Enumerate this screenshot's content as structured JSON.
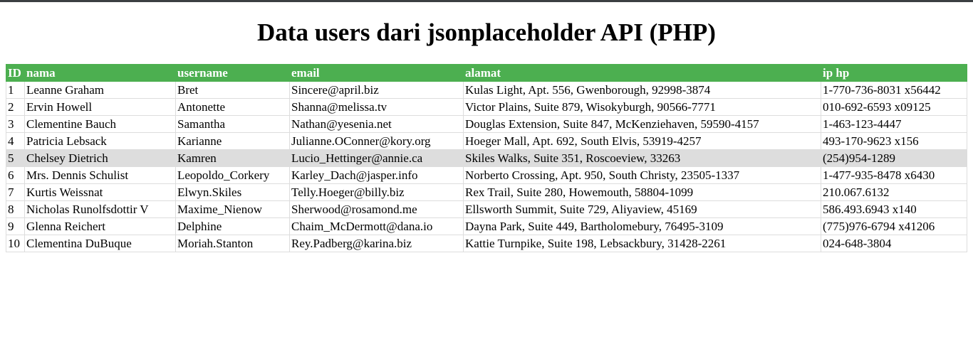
{
  "page_title": "Data users dari jsonplaceholder API (PHP)",
  "table": {
    "headers": [
      "ID",
      "nama",
      "username",
      "email",
      "alamat",
      "ip hp"
    ],
    "rows": [
      [
        "1",
        "Leanne Graham",
        "Bret",
        "Sincere@april.biz",
        "Kulas Light, Apt. 556, Gwenborough, 92998-3874",
        "1-770-736-8031 x56442"
      ],
      [
        "2",
        "Ervin Howell",
        "Antonette",
        "Shanna@melissa.tv",
        "Victor Plains, Suite 879, Wisokyburgh, 90566-7771",
        "010-692-6593 x09125"
      ],
      [
        "3",
        "Clementine Bauch",
        "Samantha",
        "Nathan@yesenia.net",
        "Douglas Extension, Suite 847, McKenziehaven, 59590-4157",
        "1-463-123-4447"
      ],
      [
        "4",
        "Patricia Lebsack",
        "Karianne",
        "Julianne.OConner@kory.org",
        "Hoeger Mall, Apt. 692, South Elvis, 53919-4257",
        "493-170-9623 x156"
      ],
      [
        "5",
        "Chelsey Dietrich",
        "Kamren",
        "Lucio_Hettinger@annie.ca",
        "Skiles Walks, Suite 351, Roscoeview, 33263",
        "(254)954-1289"
      ],
      [
        "6",
        "Mrs. Dennis Schulist",
        "Leopoldo_Corkery",
        "Karley_Dach@jasper.info",
        "Norberto Crossing, Apt. 950, South Christy, 23505-1337",
        "1-477-935-8478 x6430"
      ],
      [
        "7",
        "Kurtis Weissnat",
        "Elwyn.Skiles",
        "Telly.Hoeger@billy.biz",
        "Rex Trail, Suite 280, Howemouth, 58804-1099",
        "210.067.6132"
      ],
      [
        "8",
        "Nicholas Runolfsdottir V",
        "Maxime_Nienow",
        "Sherwood@rosamond.me",
        "Ellsworth Summit, Suite 729, Aliyaview, 45169",
        "586.493.6943 x140"
      ],
      [
        "9",
        "Glenna Reichert",
        "Delphine",
        "Chaim_McDermott@dana.io",
        "Dayna Park, Suite 449, Bartholomebury, 76495-3109",
        "(775)976-6794 x41206"
      ],
      [
        "10",
        "Clementina DuBuque",
        "Moriah.Stanton",
        "Rey.Padberg@karina.biz",
        "Kattie Turnpike, Suite 198, Lebsackbury, 31428-2261",
        "024-648-3804"
      ]
    ],
    "highlighted_row": 4
  },
  "colors": {
    "header_bg": "#4caf50",
    "header_text": "#ffffff",
    "row_highlight": "#dddddd",
    "border": "#dddddd"
  }
}
